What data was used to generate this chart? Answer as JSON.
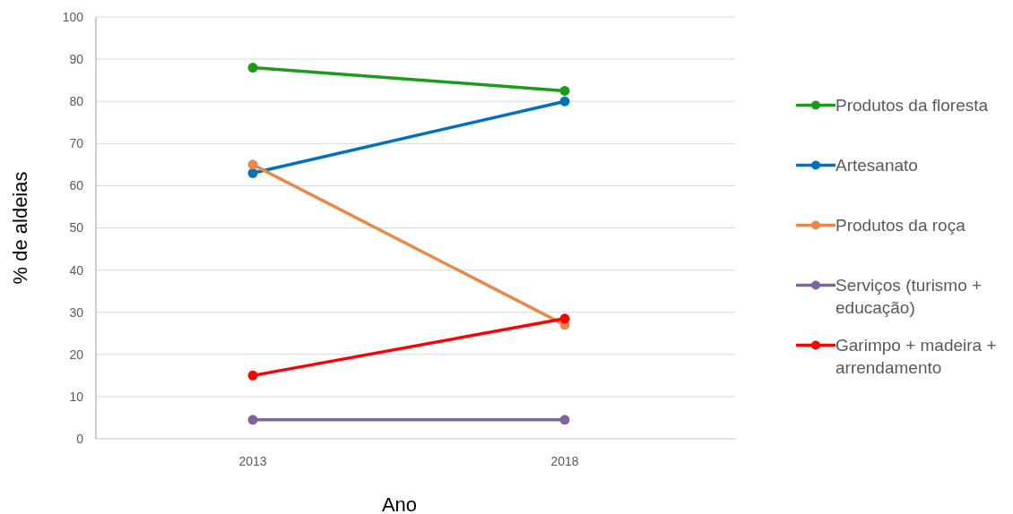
{
  "chart_data": {
    "type": "line",
    "categories": [
      "2013",
      "2018"
    ],
    "series": [
      {
        "name": "Produtos da floresta",
        "color": "#1a9c1a",
        "values": [
          88,
          82.5
        ]
      },
      {
        "name": "Artesanato",
        "color": "#0070c0",
        "values": [
          63,
          80
        ]
      },
      {
        "name": "Produtos da roça",
        "color": "#e8894a",
        "values": [
          65,
          27
        ]
      },
      {
        "name": "Serviços (turismo + educação)",
        "color": "#8064a2",
        "values": [
          4.5,
          4.5
        ]
      },
      {
        "name": "Garimpo + madeira + arrendamento",
        "color": "#ff0000",
        "values": [
          15,
          28.5
        ]
      }
    ],
    "xlabel": "Ano",
    "ylabel": "% de aldeias",
    "ylim": [
      0,
      100
    ],
    "yticks": [
      0,
      10,
      20,
      30,
      40,
      50,
      60,
      70,
      80,
      90,
      100
    ],
    "grid": "y",
    "legend": "right",
    "marker": "circle",
    "line_style": "solid"
  }
}
